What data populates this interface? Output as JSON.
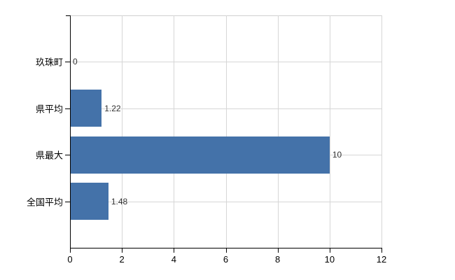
{
  "chart_data": {
    "type": "bar",
    "orientation": "horizontal",
    "title": "",
    "xlabel": "",
    "ylabel": "",
    "categories": [
      "玖珠町",
      "県平均",
      "県最大",
      "全国平均"
    ],
    "values": [
      0,
      1.22,
      10,
      1.48
    ],
    "value_labels": [
      "0",
      "1.22",
      "10",
      "1.48"
    ],
    "xlim": [
      0,
      12
    ],
    "xticks": [
      0,
      2,
      4,
      6,
      8,
      10,
      12
    ],
    "xtick_labels": [
      "0",
      "2",
      "4",
      "6",
      "8",
      "10",
      "12"
    ],
    "grid": "both",
    "legend": "none",
    "colors": {
      "bar": "#4472a9",
      "gridline": "#d6d6d6",
      "plot_border": "#d0d0d0",
      "axis": "#000000",
      "tick_label": "#000000",
      "value_label": "#333333",
      "background": "#ffffff"
    }
  }
}
